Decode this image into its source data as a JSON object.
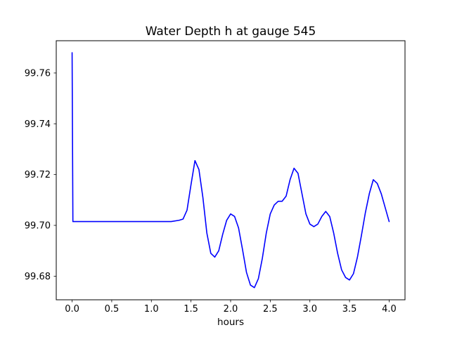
{
  "chart_data": {
    "type": "line",
    "title": "Water Depth h at gauge 545",
    "xlabel": "hours",
    "ylabel": "",
    "grid": false,
    "legend": "none",
    "line_color": "#0000ff",
    "axes_color": "#000000",
    "background_color": "#ffffff",
    "xlim": [
      -0.2,
      4.2
    ],
    "ylim": [
      99.6707,
      99.7727
    ],
    "xticks": [
      0.0,
      0.5,
      1.0,
      1.5,
      2.0,
      2.5,
      3.0,
      3.5,
      4.0
    ],
    "xtick_labels": [
      "0.0",
      "0.5",
      "1.0",
      "1.5",
      "2.0",
      "2.5",
      "3.0",
      "3.5",
      "4.0"
    ],
    "yticks": [
      99.68,
      99.7,
      99.72,
      99.74,
      99.76
    ],
    "ytick_labels": [
      "99.68",
      "99.70",
      "99.72",
      "99.74",
      "99.76"
    ],
    "series": [
      {
        "name": "water-depth-h",
        "x": [
          0.0,
          0.01,
          0.1,
          0.3,
          0.5,
          0.7,
          0.9,
          1.1,
          1.25,
          1.35,
          1.4,
          1.45,
          1.5,
          1.55,
          1.6,
          1.65,
          1.7,
          1.75,
          1.8,
          1.85,
          1.9,
          1.95,
          2.0,
          2.05,
          2.1,
          2.15,
          2.2,
          2.25,
          2.3,
          2.35,
          2.4,
          2.45,
          2.5,
          2.55,
          2.6,
          2.65,
          2.7,
          2.75,
          2.8,
          2.85,
          2.9,
          2.95,
          3.0,
          3.05,
          3.1,
          3.15,
          3.2,
          3.25,
          3.3,
          3.35,
          3.4,
          3.45,
          3.5,
          3.55,
          3.6,
          3.65,
          3.7,
          3.75,
          3.8,
          3.85,
          3.9,
          3.95,
          4.0
        ],
        "y": [
          99.768,
          99.7015,
          99.7015,
          99.7015,
          99.7015,
          99.7015,
          99.7015,
          99.7015,
          99.7015,
          99.702,
          99.7025,
          99.706,
          99.716,
          99.7255,
          99.722,
          99.711,
          99.697,
          99.689,
          99.6875,
          99.69,
          99.6965,
          99.702,
          99.7045,
          99.7035,
          99.699,
          99.6905,
          99.6815,
          99.6765,
          99.6755,
          99.679,
          99.687,
          99.697,
          99.7045,
          99.708,
          99.7095,
          99.7095,
          99.7115,
          99.718,
          99.7225,
          99.7205,
          99.7125,
          99.7045,
          99.7005,
          99.6995,
          99.7005,
          99.7035,
          99.7055,
          99.7035,
          99.697,
          99.689,
          99.6825,
          99.6795,
          99.6785,
          99.681,
          99.6875,
          99.696,
          99.705,
          99.7125,
          99.718,
          99.7165,
          99.7125,
          99.707,
          99.7015
        ]
      }
    ]
  }
}
